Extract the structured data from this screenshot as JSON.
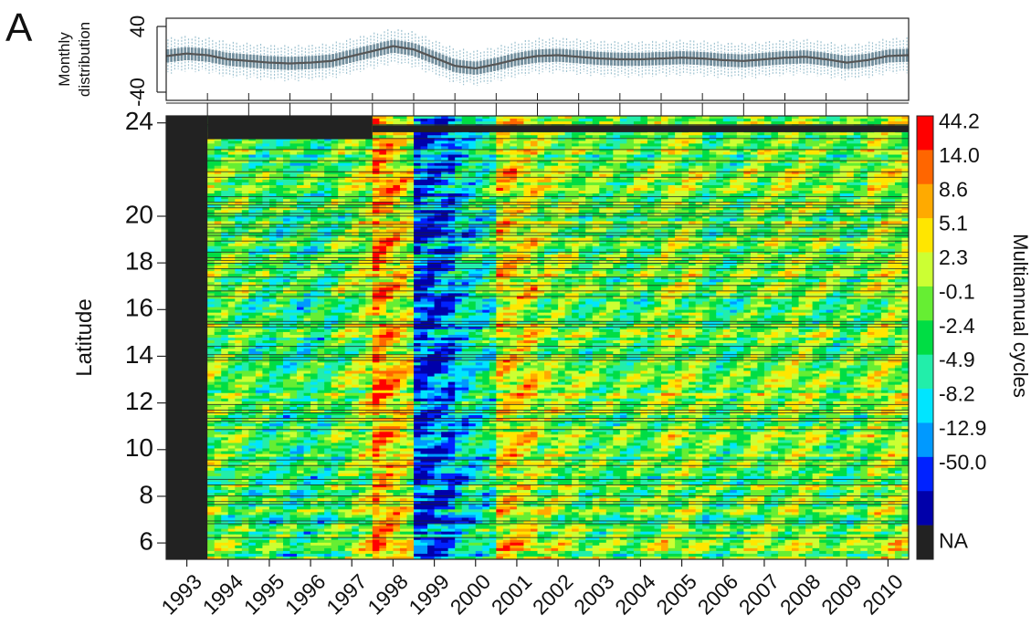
{
  "panel_label": "A",
  "chart_data": [
    {
      "type": "line",
      "name": "monthly-distribution",
      "ylabel": [
        "Monthly",
        "distribution"
      ],
      "ylim": [
        -50,
        50
      ],
      "y_ticks": [
        40,
        -40
      ],
      "y_tick_labels": [
        "40",
        "-40"
      ],
      "x_range": [
        1993,
        2011
      ],
      "grid": false,
      "colors": {
        "median": "#555555",
        "box": "#5f7f8f",
        "whisker": "#9fc3d1"
      },
      "x": [
        1993.0,
        1993.5,
        1994.0,
        1994.5,
        1995.0,
        1995.5,
        1996.0,
        1996.5,
        1997.0,
        1997.5,
        1998.0,
        1998.5,
        1999.0,
        1999.5,
        2000.0,
        2000.5,
        2001.0,
        2001.5,
        2002.0,
        2002.5,
        2003.0,
        2003.5,
        2004.0,
        2004.5,
        2005.0,
        2005.5,
        2006.0,
        2006.5,
        2007.0,
        2007.5,
        2008.0,
        2008.5,
        2009.0,
        2009.5,
        2010.0,
        2010.5,
        2011.0
      ],
      "median": [
        4,
        7,
        5,
        0,
        -2,
        -4,
        -5,
        -4,
        -2,
        4,
        10,
        16,
        12,
        2,
        -8,
        -11,
        -6,
        0,
        4,
        5,
        3,
        1,
        0,
        0,
        1,
        2,
        1,
        -1,
        -2,
        0,
        2,
        3,
        0,
        -4,
        -1,
        4,
        5
      ],
      "box_halfwidth": 8,
      "whisker_halfwidth": 20
    },
    {
      "type": "heatmap",
      "name": "multiannual-cycles",
      "ylabel": "Latitude",
      "y_ticks": [
        24,
        20,
        18,
        16,
        14,
        12,
        10,
        8,
        6
      ],
      "y_tick_labels": [
        "24",
        "20",
        "18",
        "16",
        "14",
        "12",
        "10",
        "8",
        "6"
      ],
      "ylim": [
        5.3,
        24.3
      ],
      "x_categories": [
        "1993",
        "1994",
        "1995",
        "1996",
        "1997",
        "1998",
        "1999",
        "2000",
        "2001",
        "2002",
        "2003",
        "2004",
        "2005",
        "2006",
        "2007",
        "2008",
        "2009",
        "2010"
      ],
      "x_range": [
        1993,
        2011
      ],
      "colorbar": {
        "label": "Multiannual cycles",
        "tick_labels": [
          "44.2",
          "14.0",
          "8.6",
          "5.1",
          "2.3",
          "-0.1",
          "-2.4",
          "-4.9",
          "-8.2",
          "-12.9",
          "-50.0",
          "NA"
        ],
        "colors": [
          "#ff0000",
          "#ff6600",
          "#ffaa00",
          "#ffe600",
          "#ccff33",
          "#66ee33",
          "#00dd44",
          "#22eeaa",
          "#00e5ff",
          "#0099ff",
          "#0022ff",
          "#0000aa",
          "#222222"
        ],
        "na_color": "#222222"
      },
      "year_anomaly": [
        0.8,
        0.2,
        -0.4,
        -0.6,
        -0.2,
        2.6,
        -2.8,
        -1.6,
        1.4,
        0.5,
        0.0,
        -0.2,
        0.6,
        -0.3,
        0.2,
        0.5,
        -0.2,
        0.6
      ],
      "na_regions": [
        {
          "x": [
            1993,
            1994
          ],
          "lat": [
            5.3,
            24.3
          ]
        },
        {
          "x": [
            1994,
            1998
          ],
          "lat": [
            23.3,
            24.3
          ]
        },
        {
          "x": [
            1998,
            2011
          ],
          "lat": [
            23.6,
            23.9
          ]
        }
      ]
    }
  ]
}
